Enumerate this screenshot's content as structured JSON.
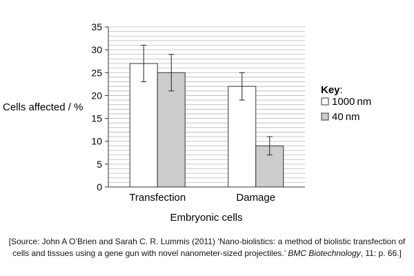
{
  "chart_data": {
    "type": "bar",
    "title": "",
    "xlabel": "Embryonic cells",
    "ylabel": "Cells affected / %",
    "ylim": [
      0,
      35
    ],
    "yticks": [
      0,
      5,
      10,
      15,
      20,
      25,
      30,
      35
    ],
    "minor_grid_step": 1,
    "grid": true,
    "categories": [
      "Transfection",
      "Damage"
    ],
    "series": [
      {
        "name": "1000 nm",
        "color": "#ffffff",
        "values": [
          27,
          22
        ],
        "error": [
          4,
          3
        ]
      },
      {
        "name": "40 nm",
        "color": "#cccccc",
        "values": [
          25,
          9
        ],
        "error": [
          4,
          2
        ]
      }
    ],
    "legend": {
      "title": "Key",
      "title_suffix": ":",
      "placement": "right"
    }
  },
  "source": {
    "prefix": "[Source: John A O’Brien and Sarah C. R. Lummis (2011) ‘Nano-biolistics: a method of biolistic transfection of cells and tissues using a gene gun with novel nanometer-sized projectiles.’ ",
    "journal": "BMC Biotechnology",
    "suffix": ", 11: p. 66.]"
  }
}
